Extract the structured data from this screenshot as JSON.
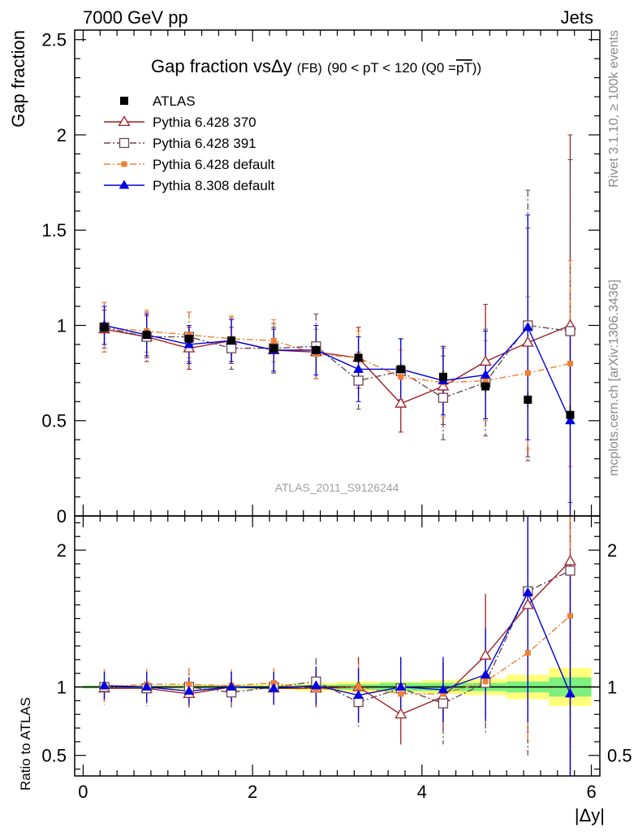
{
  "header": {
    "energy_label": "7000 GeV pp",
    "category_label": "Jets"
  },
  "side_labels": {
    "rivet": "Rivet 3.1.10, ≥ 100k events",
    "mcplots": "mcplots.cern.ch [arXiv:1306.3436]"
  },
  "chart_data": [
    {
      "type": "line",
      "panel": "main",
      "title": "Gap fraction vsΔy (FB) (90 < pT < 120 (Q0 =pT))",
      "title_parts": {
        "main": "Gap fraction vs",
        "delta": "Δy",
        "fb": "(FB)",
        "range": "(90 < pT < 120 (Q0 =",
        "pt": "pT",
        "close": "))"
      },
      "ylabel": "Gap fraction",
      "watermark": "ATLAS_2011_S9126244",
      "xlim": [
        -0.1,
        6.1
      ],
      "ylim": [
        0,
        2.55
      ],
      "yticks": [
        0,
        0.5,
        1,
        1.5,
        2,
        2.5
      ],
      "ytick_labels": [
        "0",
        "0.5",
        "1",
        "1.5",
        "2",
        "2.5"
      ],
      "legend_position": "top-left",
      "x": [
        0.25,
        0.75,
        1.25,
        1.75,
        2.25,
        2.75,
        3.25,
        3.75,
        4.25,
        4.75,
        5.25,
        5.75
      ],
      "series": [
        {
          "name": "ATLAS",
          "color": "#000000",
          "marker": "filled-square",
          "line": "none",
          "values": [
            0.99,
            0.95,
            0.93,
            0.92,
            0.88,
            0.87,
            0.83,
            0.77,
            0.73,
            0.68,
            0.61,
            0.53
          ],
          "errors": [
            0.02,
            0.02,
            0.02,
            0.02,
            0.02,
            0.02,
            0.03,
            0.03,
            0.03,
            0.03,
            0.04,
            0.05
          ]
        },
        {
          "name": "Pythia 6.428 370",
          "color": "#a01e23",
          "marker": "open-triangle",
          "line": "solid",
          "values": [
            0.98,
            0.94,
            0.88,
            0.92,
            0.87,
            0.86,
            0.83,
            0.59,
            0.68,
            0.81,
            0.91,
            1.0
          ],
          "errors": [
            0.1,
            0.11,
            0.11,
            0.12,
            0.12,
            0.14,
            0.16,
            0.15,
            0.2,
            0.3,
            0.6,
            1.0
          ]
        },
        {
          "name": "Pythia 6.428 391",
          "color": "#6b4851",
          "marker": "open-square",
          "line": "dashdot",
          "values": [
            0.99,
            0.94,
            0.94,
            0.88,
            0.88,
            0.89,
            0.71,
            0.76,
            0.62,
            0.7,
            1.0,
            0.97
          ],
          "errors": [
            0.13,
            0.13,
            0.13,
            0.11,
            0.13,
            0.17,
            0.15,
            0.17,
            0.22,
            0.28,
            0.71,
            0.9
          ]
        },
        {
          "name": "Pythia 6.428 default",
          "color": "#f08030",
          "marker": "filled-square",
          "line": "dashdot",
          "values": [
            0.99,
            0.97,
            0.95,
            0.93,
            0.92,
            0.85,
            0.83,
            0.73,
            0.7,
            0.71,
            0.75,
            0.8
          ],
          "errors": [
            0.13,
            0.11,
            0.12,
            0.12,
            0.11,
            0.13,
            0.14,
            0.14,
            0.18,
            0.21,
            0.4,
            0.54
          ]
        },
        {
          "name": "Pythia 8.308 default",
          "color": "#0000e0",
          "marker": "filled-triangle",
          "line": "solid",
          "values": [
            1.0,
            0.95,
            0.9,
            0.92,
            0.87,
            0.87,
            0.77,
            0.77,
            0.71,
            0.74,
            0.99,
            0.5
          ],
          "errors": [
            0.1,
            0.11,
            0.1,
            0.11,
            0.11,
            0.13,
            0.17,
            0.16,
            0.18,
            0.23,
            0.59,
            0.5
          ]
        }
      ]
    },
    {
      "type": "line",
      "panel": "ratio",
      "ylabel": "Ratio to ATLAS",
      "xlabel": "|Δy|",
      "xlim": [
        -0.1,
        6.1
      ],
      "ylim": [
        0.35,
        2.25
      ],
      "xticks": [
        0,
        2,
        4,
        6
      ],
      "xtick_labels": [
        "0",
        "2",
        "4",
        "6"
      ],
      "yticks": [
        0.5,
        1,
        2
      ],
      "ytick_labels": [
        "0.5",
        "1",
        "2"
      ],
      "bands": {
        "bins": [
          [
            0,
            0.5
          ],
          [
            0.5,
            1
          ],
          [
            1,
            1.5
          ],
          [
            1.5,
            2
          ],
          [
            2,
            2.5
          ],
          [
            2.5,
            3
          ],
          [
            3,
            3.5
          ],
          [
            3.5,
            4
          ],
          [
            4,
            4.5
          ],
          [
            4.5,
            5
          ],
          [
            5,
            5.5
          ],
          [
            5.5,
            6
          ]
        ],
        "stat": [
          0.01,
          0.01,
          0.01,
          0.01,
          0.01,
          0.015,
          0.02,
          0.03,
          0.03,
          0.03,
          0.04,
          0.07
        ],
        "total": [
          0.01,
          0.01,
          0.015,
          0.015,
          0.02,
          0.03,
          0.04,
          0.04,
          0.05,
          0.06,
          0.09,
          0.14
        ],
        "stat_color": "#7df07d",
        "total_color": "#ffff7a"
      },
      "series": [
        {
          "name": "Pythia 6.428 370",
          "values": [
            0.99,
            0.99,
            0.95,
            1.0,
            0.99,
            0.99,
            1.0,
            0.8,
            0.93,
            1.23,
            1.6,
            1.92
          ],
          "errors": [
            0.1,
            0.11,
            0.1,
            0.12,
            0.12,
            0.14,
            0.22,
            0.22,
            0.25,
            0.45,
            1.0,
            1.6
          ]
        },
        {
          "name": "Pythia 6.428 391",
          "values": [
            1.0,
            0.99,
            1.0,
            0.96,
            1.0,
            1.04,
            0.89,
            0.99,
            0.88,
            1.03,
            1.7,
            1.85
          ],
          "errors": [
            0.13,
            0.13,
            0.13,
            0.11,
            0.13,
            0.17,
            0.18,
            0.22,
            0.3,
            0.38,
            1.2,
            1.7
          ]
        },
        {
          "name": "Pythia 6.428 default",
          "values": [
            1.0,
            1.02,
            1.02,
            1.01,
            1.03,
            0.98,
            1.0,
            0.95,
            0.95,
            1.04,
            1.25,
            1.52
          ],
          "errors": [
            0.13,
            0.11,
            0.12,
            0.12,
            0.11,
            0.13,
            0.17,
            0.18,
            0.24,
            0.3,
            0.65,
            1.0
          ]
        },
        {
          "name": "Pythia 8.308 default",
          "values": [
            1.01,
            1.0,
            0.97,
            1.0,
            0.99,
            1.01,
            0.94,
            1.0,
            0.98,
            1.09,
            1.69,
            0.95
          ],
          "errors": [
            0.1,
            0.11,
            0.1,
            0.11,
            0.12,
            0.14,
            0.2,
            0.22,
            0.24,
            0.34,
            0.95,
            0.95
          ]
        }
      ]
    }
  ]
}
